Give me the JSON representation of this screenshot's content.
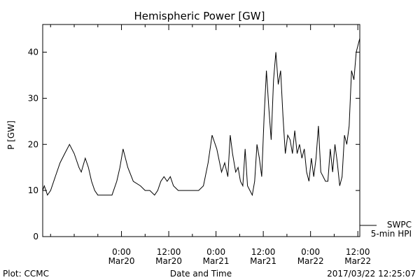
{
  "chart_data": {
    "type": "line",
    "title": "Hemispheric Power [GW]",
    "xlabel": "Date and Time",
    "ylabel": "P [GW]",
    "xlim": [
      "2017-03-19 04:00",
      "2017-03-22 12:30"
    ],
    "ylim": [
      0,
      46
    ],
    "y_ticks": [
      0,
      10,
      20,
      30,
      40
    ],
    "x_ticks": [
      {
        "t": "2017-03-20 00:00",
        "line1": "0:00",
        "line2": "Mar20"
      },
      {
        "t": "2017-03-20 12:00",
        "line1": "12:00",
        "line2": "Mar20"
      },
      {
        "t": "2017-03-21 00:00",
        "line1": "0:00",
        "line2": "Mar21"
      },
      {
        "t": "2017-03-21 12:00",
        "line1": "12:00",
        "line2": "Mar21"
      },
      {
        "t": "2017-03-22 00:00",
        "line1": "0:00",
        "line2": "Mar22"
      },
      {
        "t": "2017-03-22 12:00",
        "line1": "12:00",
        "line2": "Mar22"
      }
    ],
    "x_minor_ticks": [
      "2017-03-19 06:00",
      "2017-03-19 12:00",
      "2017-03-19 18:00",
      "2017-03-20 06:00",
      "2017-03-20 18:00",
      "2017-03-21 06:00",
      "2017-03-21 18:00",
      "2017-03-22 06:00"
    ],
    "series": [
      {
        "name": "SWPC 5-min HPI",
        "color": "#000000",
        "x": [
          "2017-03-19 04:00",
          "2017-03-19 04:24",
          "2017-03-19 05:12",
          "2017-03-19 06:00",
          "2017-03-19 07:12",
          "2017-03-19 08:24",
          "2017-03-19 09:36",
          "2017-03-19 10:48",
          "2017-03-19 12:00",
          "2017-03-19 13:12",
          "2017-03-19 13:48",
          "2017-03-19 14:48",
          "2017-03-19 15:36",
          "2017-03-19 16:24",
          "2017-03-19 17:12",
          "2017-03-19 18:00",
          "2017-03-19 18:48",
          "2017-03-19 19:36",
          "2017-03-19 20:24",
          "2017-03-19 21:36",
          "2017-03-19 22:48",
          "2017-03-19 23:36",
          "2017-03-20 00:24",
          "2017-03-20 01:36",
          "2017-03-20 03:00",
          "2017-03-20 04:48",
          "2017-03-20 06:00",
          "2017-03-20 07:12",
          "2017-03-20 08:24",
          "2017-03-20 09:12",
          "2017-03-20 10:00",
          "2017-03-20 10:48",
          "2017-03-20 11:36",
          "2017-03-20 12:24",
          "2017-03-20 13:12",
          "2017-03-20 14:24",
          "2017-03-20 15:36",
          "2017-03-20 16:48",
          "2017-03-20 17:36",
          "2017-03-20 18:24",
          "2017-03-20 19:36",
          "2017-03-20 20:48",
          "2017-03-20 22:00",
          "2017-03-20 23:00",
          "2017-03-21 00:12",
          "2017-03-21 01:24",
          "2017-03-21 02:12",
          "2017-03-21 03:00",
          "2017-03-21 03:36",
          "2017-03-21 04:12",
          "2017-03-21 05:00",
          "2017-03-21 05:36",
          "2017-03-21 06:12",
          "2017-03-21 06:48",
          "2017-03-21 07:24",
          "2017-03-21 08:00",
          "2017-03-21 08:36",
          "2017-03-21 09:12",
          "2017-03-21 09:48",
          "2017-03-21 10:24",
          "2017-03-21 11:00",
          "2017-03-21 11:36",
          "2017-03-21 12:12",
          "2017-03-21 12:48",
          "2017-03-21 13:24",
          "2017-03-21 14:00",
          "2017-03-21 14:36",
          "2017-03-21 15:12",
          "2017-03-21 15:48",
          "2017-03-21 16:24",
          "2017-03-21 17:00",
          "2017-03-21 17:36",
          "2017-03-21 18:12",
          "2017-03-21 18:48",
          "2017-03-21 19:24",
          "2017-03-21 20:00",
          "2017-03-21 20:36",
          "2017-03-21 21:12",
          "2017-03-21 21:48",
          "2017-03-21 22:24",
          "2017-03-21 23:00",
          "2017-03-21 23:36",
          "2017-03-22 00:12",
          "2017-03-22 00:48",
          "2017-03-22 01:24",
          "2017-03-22 02:00",
          "2017-03-22 02:36",
          "2017-03-22 03:12",
          "2017-03-22 03:48",
          "2017-03-22 04:24",
          "2017-03-22 05:00",
          "2017-03-22 05:36",
          "2017-03-22 06:12",
          "2017-03-22 06:48",
          "2017-03-22 07:24",
          "2017-03-22 08:00",
          "2017-03-22 08:36",
          "2017-03-22 09:12",
          "2017-03-22 09:48",
          "2017-03-22 10:24",
          "2017-03-22 11:00",
          "2017-03-22 11:36",
          "2017-03-22 12:12",
          "2017-03-22 12:30"
        ],
        "values": [
          10,
          11,
          9,
          10,
          13,
          16,
          18,
          20,
          18,
          15,
          14,
          17,
          15,
          12,
          10,
          9,
          9,
          9,
          9,
          9,
          12,
          15,
          19,
          15,
          12,
          11,
          10,
          10,
          9,
          10,
          12,
          13,
          12,
          13,
          11,
          10,
          10,
          10,
          10,
          10,
          10,
          11,
          16,
          22,
          19,
          14,
          16,
          13,
          22,
          18,
          14,
          15,
          12,
          11,
          19,
          11,
          10,
          9,
          12,
          20,
          17,
          13,
          26,
          36,
          28,
          21,
          34,
          40,
          33,
          36,
          26,
          18,
          22,
          21,
          18,
          23,
          18,
          20,
          17,
          19,
          14,
          12,
          17,
          13,
          17,
          24,
          14,
          13,
          12,
          12,
          19,
          14,
          20,
          16,
          11,
          13,
          22,
          20,
          24,
          36,
          34,
          40,
          42,
          43
        ]
      }
    ],
    "legend": {
      "position": "bottom-right",
      "line1": "SWPC",
      "line2": "5-min HPI"
    }
  },
  "footer": {
    "plot_source": "Plot: CCMC",
    "timestamp": "2017/03/22 12:25:07"
  }
}
